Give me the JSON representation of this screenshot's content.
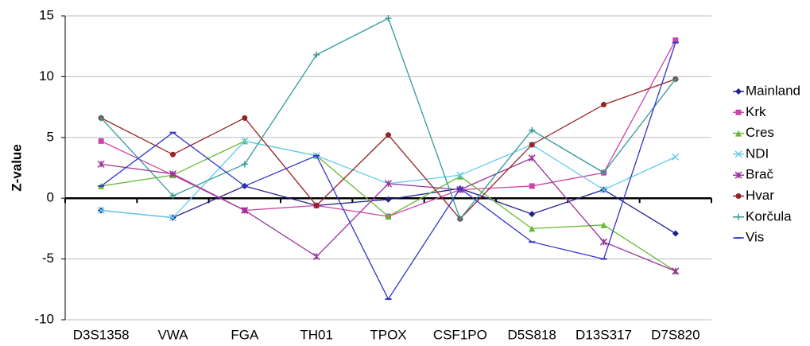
{
  "chart_data": {
    "type": "line",
    "y_label": "Z-value",
    "categories": [
      "D3S1358",
      "VWA",
      "FGA",
      "TH01",
      "TPOX",
      "CSF1PO",
      "D5S818",
      "D13S317",
      "D7S820"
    ],
    "ylim": [
      -10,
      15
    ],
    "yticks": [
      -10,
      -5,
      0,
      5,
      10,
      15
    ],
    "grid": true,
    "legend": "right",
    "series": [
      {
        "name": "Mainland",
        "color": "#1f1f8f",
        "marker": "diamond",
        "values": [
          -1,
          -1.6,
          1,
          -0.6,
          -0.1,
          0.8,
          -1.3,
          0.7,
          -2.9
        ]
      },
      {
        "name": "Krk",
        "color": "#cc44aa",
        "marker": "square",
        "values": [
          4.7,
          1.9,
          -1,
          -0.6,
          -1.5,
          0.7,
          1,
          2.1,
          13
        ]
      },
      {
        "name": "Cres",
        "color": "#66bb33",
        "marker": "triangle",
        "values": [
          1,
          1.9,
          4.7,
          3.5,
          -1.5,
          1.8,
          -2.5,
          -2.2,
          -6
        ]
      },
      {
        "name": "NDI",
        "color": "#66ccee",
        "marker": "x",
        "values": [
          -1,
          -1.6,
          4.7,
          3.5,
          1.2,
          1.9,
          4.4,
          0.7,
          3.4
        ]
      },
      {
        "name": "Brač",
        "color": "#993399",
        "marker": "star",
        "values": [
          2.8,
          2,
          -1,
          -4.8,
          1.2,
          0.7,
          3.3,
          -3.6,
          -6
        ]
      },
      {
        "name": "Hvar",
        "color": "#992222",
        "marker": "circle",
        "values": [
          6.6,
          3.6,
          6.6,
          -0.6,
          5.2,
          -1.7,
          4.4,
          7.7,
          9.8
        ]
      },
      {
        "name": "Korčula",
        "color": "#339999",
        "marker": "plus",
        "values": [
          6.6,
          0.2,
          2.8,
          11.8,
          14.8,
          -1.7,
          5.6,
          2.1,
          9.8
        ]
      },
      {
        "name": "Vis",
        "color": "#3333cc",
        "marker": "dash",
        "values": [
          1,
          5.4,
          1,
          3.5,
          -8.3,
          0.8,
          -3.6,
          -5,
          12.8
        ]
      }
    ]
  }
}
